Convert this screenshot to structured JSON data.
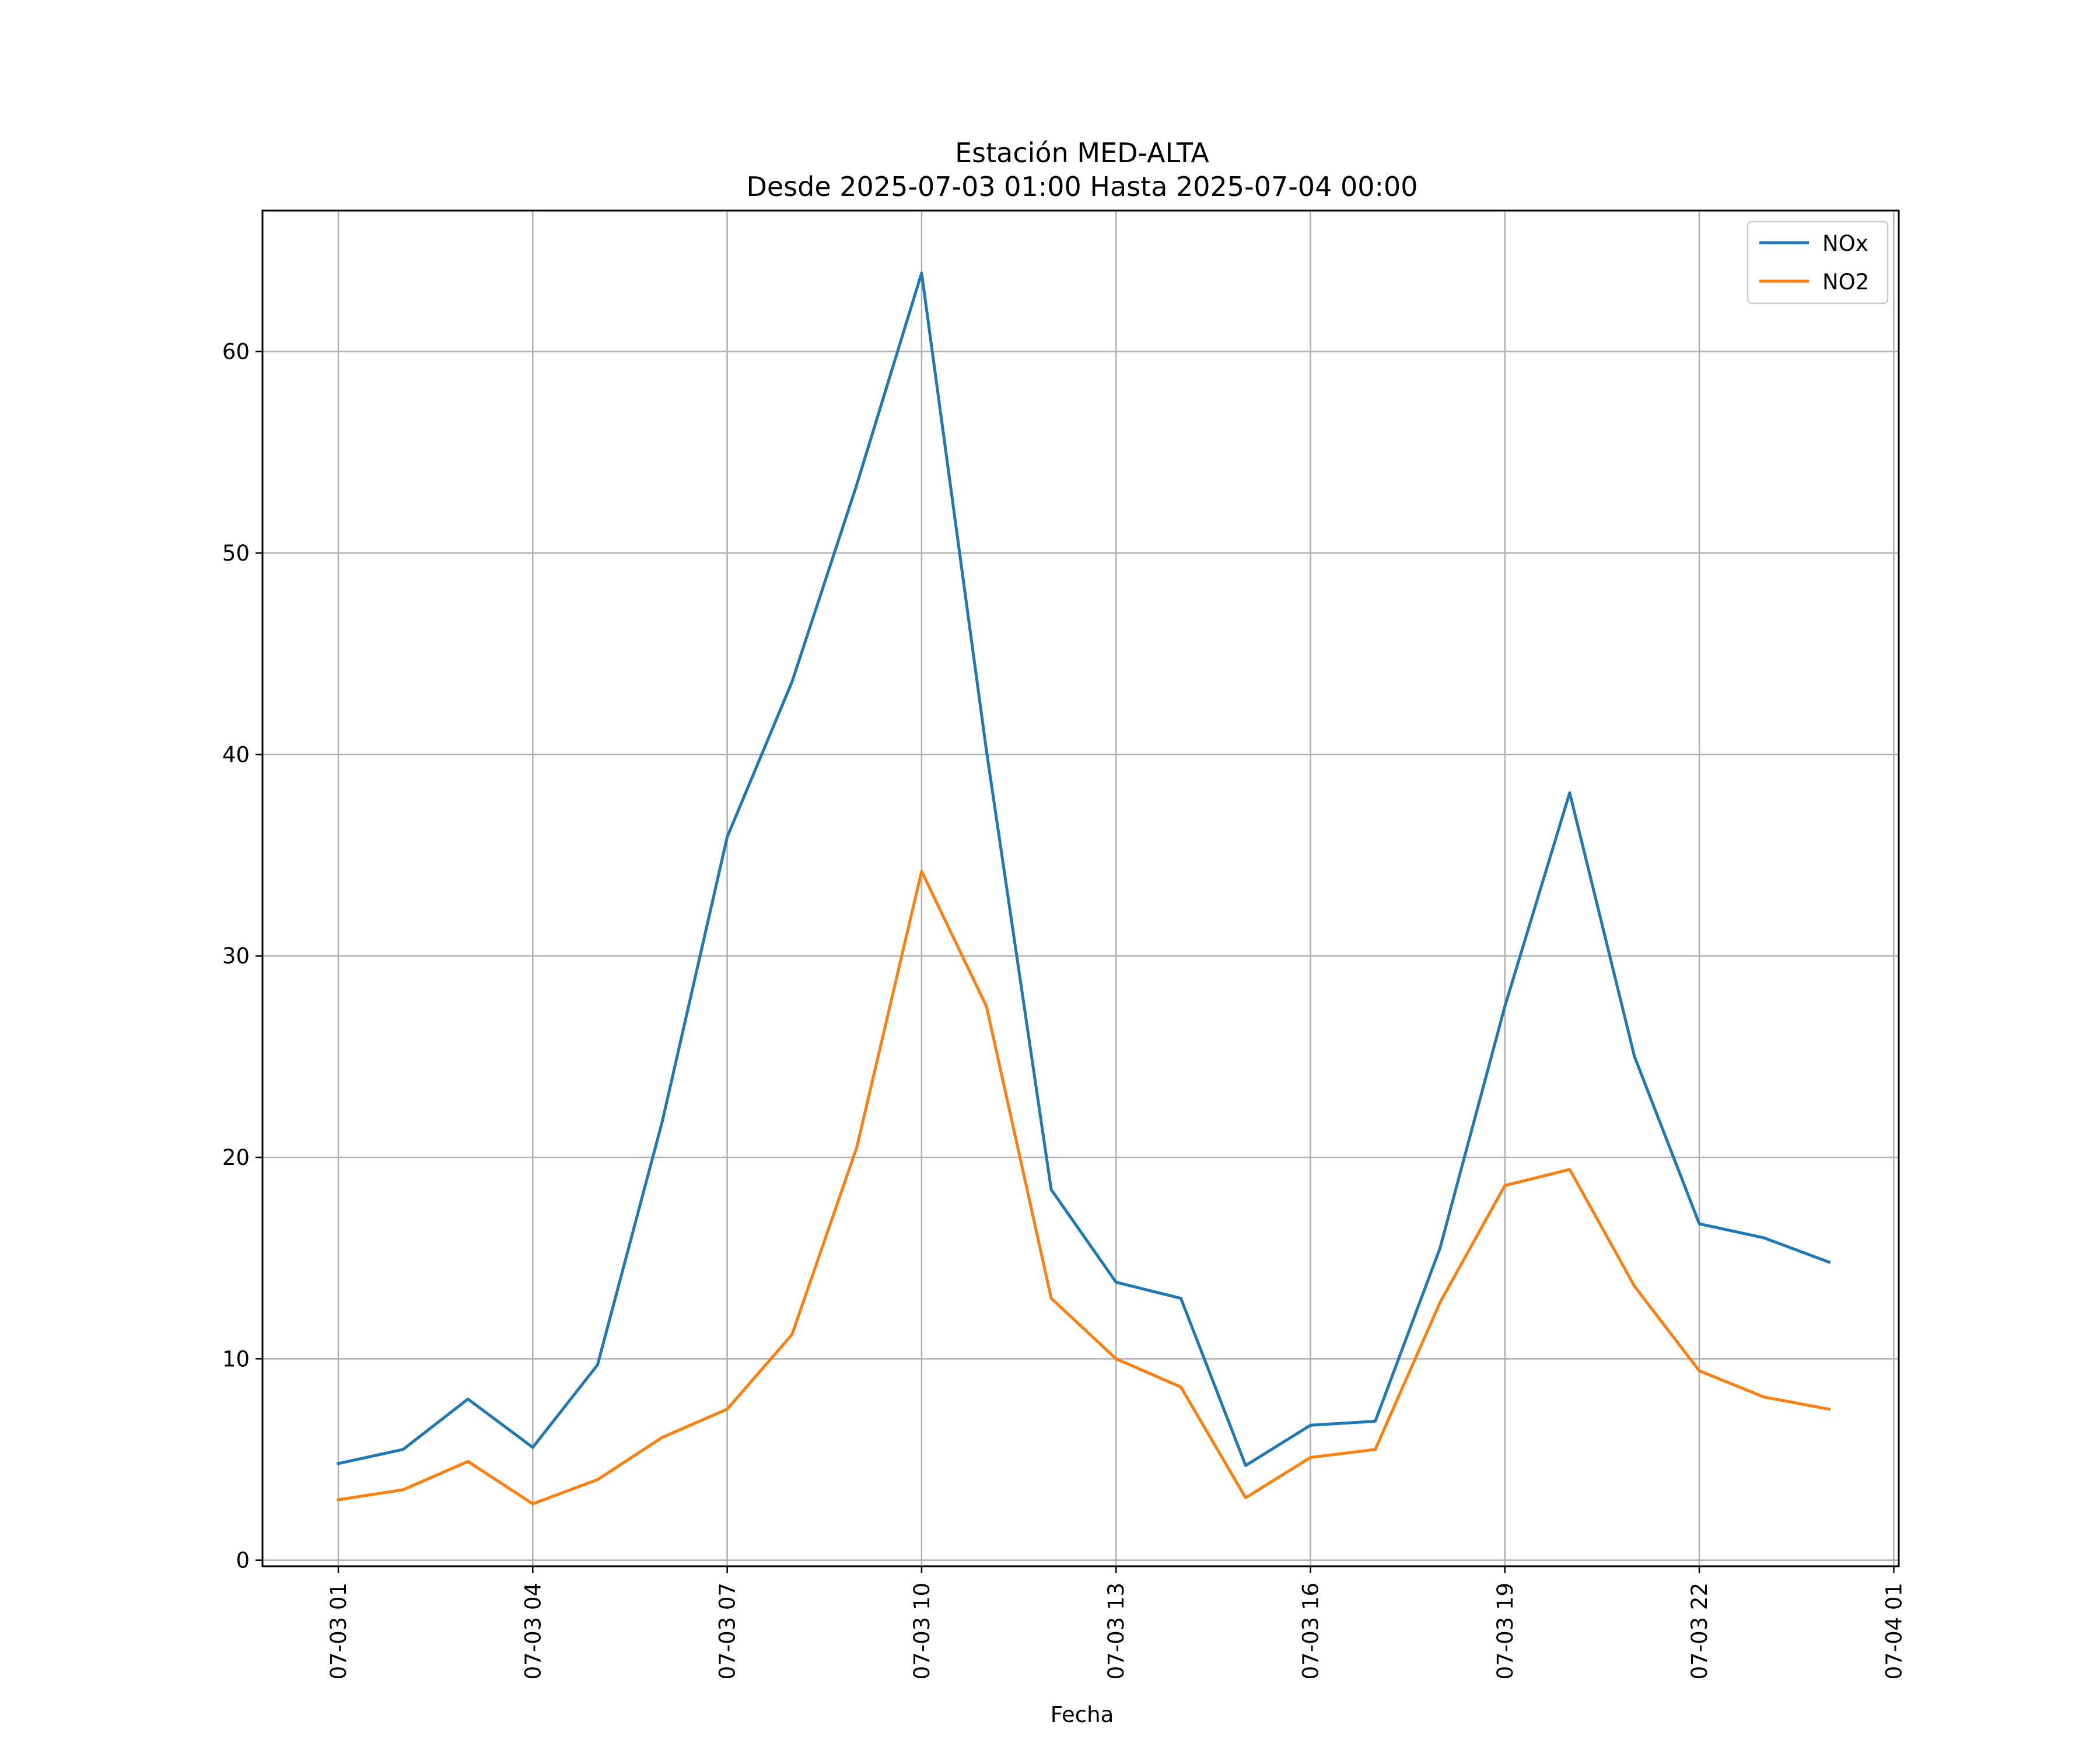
{
  "chart_data": {
    "type": "line",
    "title": "Estación MED-ALTA",
    "subtitle": "Desde 2025-07-03 01:00 Hasta 2025-07-04 00:00",
    "xlabel": "Fecha",
    "ylabel": "",
    "x": [
      "07-03 01",
      "07-03 02",
      "07-03 03",
      "07-03 04",
      "07-03 05",
      "07-03 06",
      "07-03 07",
      "07-03 08",
      "07-03 09",
      "07-03 10",
      "07-03 11",
      "07-03 12",
      "07-03 13",
      "07-03 14",
      "07-03 15",
      "07-03 16",
      "07-03 17",
      "07-03 18",
      "07-03 19",
      "07-03 20",
      "07-03 21",
      "07-03 22",
      "07-03 23",
      "07-04 00"
    ],
    "xtick_labels": [
      "07-03 01",
      "07-03 04",
      "07-03 07",
      "07-03 10",
      "07-03 13",
      "07-03 16",
      "07-03 19",
      "07-03 22",
      "07-04 01"
    ],
    "ytick_labels": [
      "0",
      "10",
      "20",
      "30",
      "40",
      "50",
      "60"
    ],
    "ylim": [
      -0.3,
      67
    ],
    "xlim": [
      "07-03 00:51",
      "07-04 01:08"
    ],
    "grid": true,
    "legend": "top-right",
    "series": [
      {
        "name": "NOx",
        "color": "#1f77b4",
        "values": [
          4.8,
          5.5,
          8.0,
          5.6,
          9.7,
          21.8,
          35.9,
          43.6,
          53.4,
          63.9,
          40.2,
          18.4,
          13.8,
          13.0,
          4.7,
          6.7,
          6.9,
          15.5,
          27.5,
          38.1,
          25.0,
          16.7,
          16.0,
          14.8
        ]
      },
      {
        "name": "NO2",
        "color": "#ff7f0e",
        "values": [
          3.0,
          3.5,
          4.9,
          2.8,
          4.0,
          6.1,
          7.5,
          11.2,
          20.5,
          34.2,
          27.5,
          13.0,
          10.0,
          8.6,
          3.1,
          5.1,
          5.5,
          12.8,
          18.6,
          19.4,
          13.6,
          9.4,
          8.1,
          7.5
        ]
      }
    ]
  }
}
